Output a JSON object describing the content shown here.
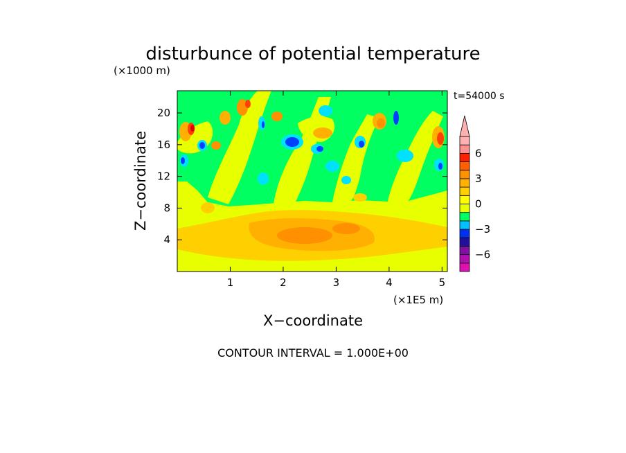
{
  "chart_data": {
    "type": "heatmap",
    "title": "disturbunce of potential temperature",
    "time_label": "t=54000 s",
    "xlabel": "X−coordinate",
    "ylabel": "Z−coordinate",
    "x_unit": "(×1E5 m)",
    "y_unit": "(×1000 m)",
    "xlim": [
      0,
      5.1
    ],
    "ylim": [
      0,
      22.8
    ],
    "x_ticks": [
      1,
      2,
      3,
      4,
      5
    ],
    "x_tick_labels": [
      "1",
      "2",
      "3",
      "4",
      "5"
    ],
    "y_ticks": [
      4,
      8,
      12,
      16,
      20
    ],
    "y_tick_labels": [
      "4",
      "8",
      "12",
      "16",
      "20"
    ],
    "contour_interval_text": "CONTOUR INTERVAL = 1.000E+00",
    "colorbar": {
      "levels": [
        -8,
        -7,
        -6,
        -5,
        -4,
        -3,
        -2,
        -1,
        0,
        1,
        2,
        3,
        4,
        5,
        6,
        7,
        8
      ],
      "colors": [
        "#e010b0",
        "#b010b0",
        "#8010a0",
        "#2010a0",
        "#0030f0",
        "#00c0ff",
        "#00ff60",
        "#e8ff00",
        "#ffff00",
        "#ffd000",
        "#ffb000",
        "#ff9000",
        "#ff6000",
        "#ff2000",
        "#ff9090",
        "#ffb0b0"
      ],
      "tick_values": [
        6,
        3,
        0,
        -3,
        -6
      ],
      "tick_labels": [
        "6",
        "3",
        "0",
        "−3",
        "−6"
      ],
      "extend": "max"
    },
    "palette": {
      "pos1": "#ffd000",
      "pos2": "#ffb000",
      "pos3": "#ff9000",
      "pos4": "#ff4000",
      "pos5": "#e00000",
      "neg1": "#00ff60",
      "neg2": "#00e0ff",
      "neg3": "#0040ff",
      "neg4": "#0000a0",
      "base": "#e8ff00"
    }
  }
}
